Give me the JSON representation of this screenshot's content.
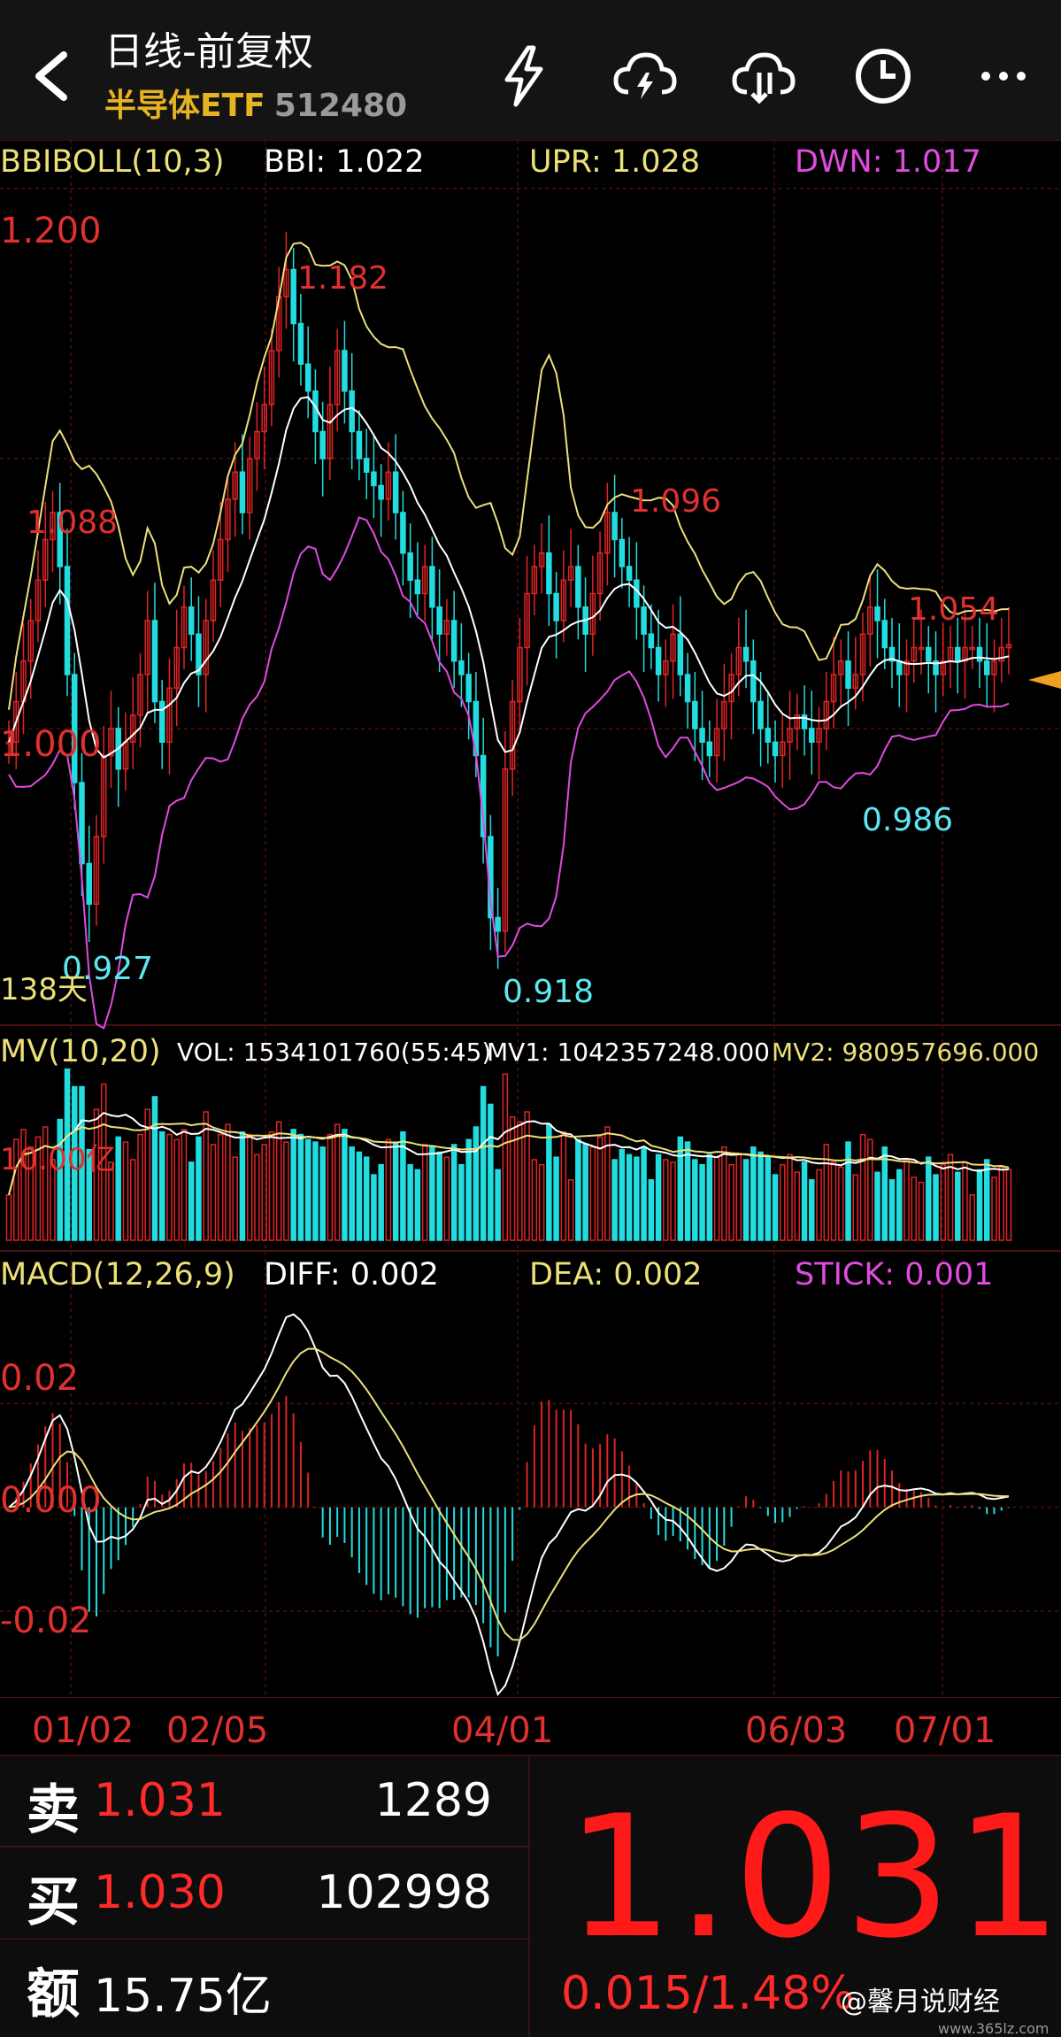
{
  "header": {
    "title": "日线-前复权",
    "name": "半导体ETF",
    "code": "512480",
    "icons": [
      "back-arrow-icon",
      "lightning-icon",
      "cloud-lightning-icon",
      "cloud-download-icon",
      "clock-icon",
      "more-icon"
    ]
  },
  "indicators": {
    "boll": {
      "label": "BBIBOLL(10,3)",
      "bbi": "BBI: 1.022",
      "upr": "UPR: 1.028",
      "dwn": "DWN: 1.017"
    },
    "mv": {
      "label": "MV(10,20)",
      "vol": "VOL: 1534101760(55:45)",
      "mv1": "MV1: 1042357248.000",
      "mv2": "MV2: 980957696.000"
    },
    "macd": {
      "label": "MACD(12,26,9)",
      "diff": "DIFF: 0.002",
      "dea": "DEA: 0.002",
      "stick": "STICK: 0.001"
    }
  },
  "price_axis": {
    "top": "1.200",
    "mid": "1.000"
  },
  "price_annotations": {
    "a1": "1.182",
    "a2": "1.088",
    "a3": "1.096",
    "a4": "1.054",
    "a5": "0.927",
    "a6": "0.918",
    "a7": "0.986",
    "days": "138天"
  },
  "vol_axis": {
    "label": "10.00亿"
  },
  "macd_axis": {
    "top": "0.02",
    "mid": "0.000",
    "bottom": "-0.02"
  },
  "dates": [
    "01/02",
    "02/05",
    "04/01",
    "06/03",
    "07/01"
  ],
  "quote": {
    "sell_label": "卖",
    "sell_price": "1.031",
    "sell_qty": "1289",
    "buy_label": "买",
    "buy_price": "1.030",
    "buy_qty": "102998",
    "amount_label": "额",
    "amount": "15.75亿",
    "last_price": "1.031",
    "change": "0.015/1.48%"
  },
  "watermark": {
    "text": "@馨月说财经",
    "site": "www.365lz.com"
  },
  "colors": {
    "up": "#e02424",
    "down": "#22dde0",
    "bbi": "#ffffff",
    "upr": "#ece07a",
    "dwn": "#e04be0",
    "label": "#e03030",
    "yellow": "#e6b422"
  },
  "chart_data": {
    "type": "candlestick",
    "title": "日线-前复权",
    "ylim": [
      0.9,
      1.2
    ],
    "x": [
      0,
      1,
      2,
      3,
      4,
      5,
      6,
      7,
      8,
      9,
      10,
      11,
      12,
      13,
      14,
      15,
      16,
      17,
      18,
      19,
      20,
      21,
      22,
      23,
      24,
      25,
      26,
      27,
      28,
      29,
      30,
      31,
      32,
      33,
      34,
      35,
      36,
      37,
      38,
      39,
      40,
      41,
      42,
      43,
      44,
      45,
      46,
      47,
      48,
      49,
      50,
      51,
      52,
      53,
      54,
      55,
      56,
      57,
      58,
      59,
      60,
      61,
      62,
      63,
      64,
      65,
      66,
      67,
      68,
      69,
      70,
      71,
      72,
      73,
      74,
      75,
      76,
      77,
      78,
      79,
      80,
      81,
      82,
      83,
      84,
      85,
      86,
      87,
      88,
      89,
      90,
      91,
      92,
      93,
      94,
      95,
      96,
      97,
      98,
      99,
      100,
      101,
      102,
      103,
      104,
      105,
      106,
      107,
      108,
      109,
      110,
      111,
      112,
      113,
      114,
      115,
      116,
      117,
      118,
      119,
      120,
      121,
      122,
      123,
      124,
      125,
      126,
      127,
      128,
      129,
      130,
      131,
      132,
      133,
      134,
      135,
      136,
      137
    ],
    "close": [
      0.995,
      1.01,
      1.025,
      1.04,
      1.055,
      1.07,
      1.08,
      1.06,
      1.02,
      0.98,
      0.95,
      0.935,
      0.96,
      0.99,
      1.0,
      0.985,
      0.995,
      1.005,
      1.02,
      1.04,
      1.01,
      0.995,
      1.015,
      1.03,
      1.045,
      1.035,
      1.02,
      1.04,
      1.055,
      1.07,
      1.085,
      1.095,
      1.08,
      1.1,
      1.11,
      1.12,
      1.14,
      1.16,
      1.17,
      1.15,
      1.135,
      1.125,
      1.11,
      1.1,
      1.12,
      1.14,
      1.125,
      1.11,
      1.1,
      1.095,
      1.09,
      1.085,
      1.095,
      1.08,
      1.065,
      1.055,
      1.05,
      1.06,
      1.045,
      1.035,
      1.04,
      1.025,
      1.02,
      1.01,
      0.99,
      0.96,
      0.93,
      0.925,
      0.985,
      1.01,
      1.03,
      1.05,
      1.06,
      1.065,
      1.05,
      1.04,
      1.055,
      1.06,
      1.045,
      1.035,
      1.05,
      1.065,
      1.08,
      1.07,
      1.06,
      1.055,
      1.045,
      1.035,
      1.03,
      1.02,
      1.025,
      1.035,
      1.02,
      1.01,
      1.0,
      0.995,
      0.99,
      1.0,
      1.01,
      1.02,
      1.03,
      1.025,
      1.01,
      1.0,
      0.995,
      0.99,
      0.995,
      1.0,
      1.005,
      1.0,
      0.995,
      1.0,
      1.01,
      1.02,
      1.025,
      1.015,
      1.02,
      1.035,
      1.045,
      1.04,
      1.03,
      1.025,
      1.02,
      1.025,
      1.03,
      1.03,
      1.025,
      1.02,
      1.025,
      1.03,
      1.025,
      1.03,
      1.03,
      1.025,
      1.02,
      1.025,
      1.03,
      1.031
    ],
    "annotations": [
      {
        "label": "1.182",
        "value": 1.182
      },
      {
        "label": "1.088",
        "value": 1.088
      },
      {
        "label": "1.096",
        "value": 1.096
      },
      {
        "label": "1.054",
        "value": 1.054
      },
      {
        "label": "0.927",
        "value": 0.927
      },
      {
        "label": "0.918",
        "value": 0.918
      },
      {
        "label": "0.986",
        "value": 0.986
      }
    ],
    "series": [
      {
        "name": "BBI"
      },
      {
        "name": "UPR"
      },
      {
        "name": "DWN"
      },
      {
        "name": "VOL"
      },
      {
        "name": "MV1"
      },
      {
        "name": "MV2"
      },
      {
        "name": "DIFF"
      },
      {
        "name": "DEA"
      },
      {
        "name": "STICK"
      }
    ],
    "macd_ylim": [
      -0.035,
      0.04
    ],
    "date_ticks": [
      "01/02",
      "02/05",
      "04/01",
      "06/03",
      "07/01"
    ]
  }
}
